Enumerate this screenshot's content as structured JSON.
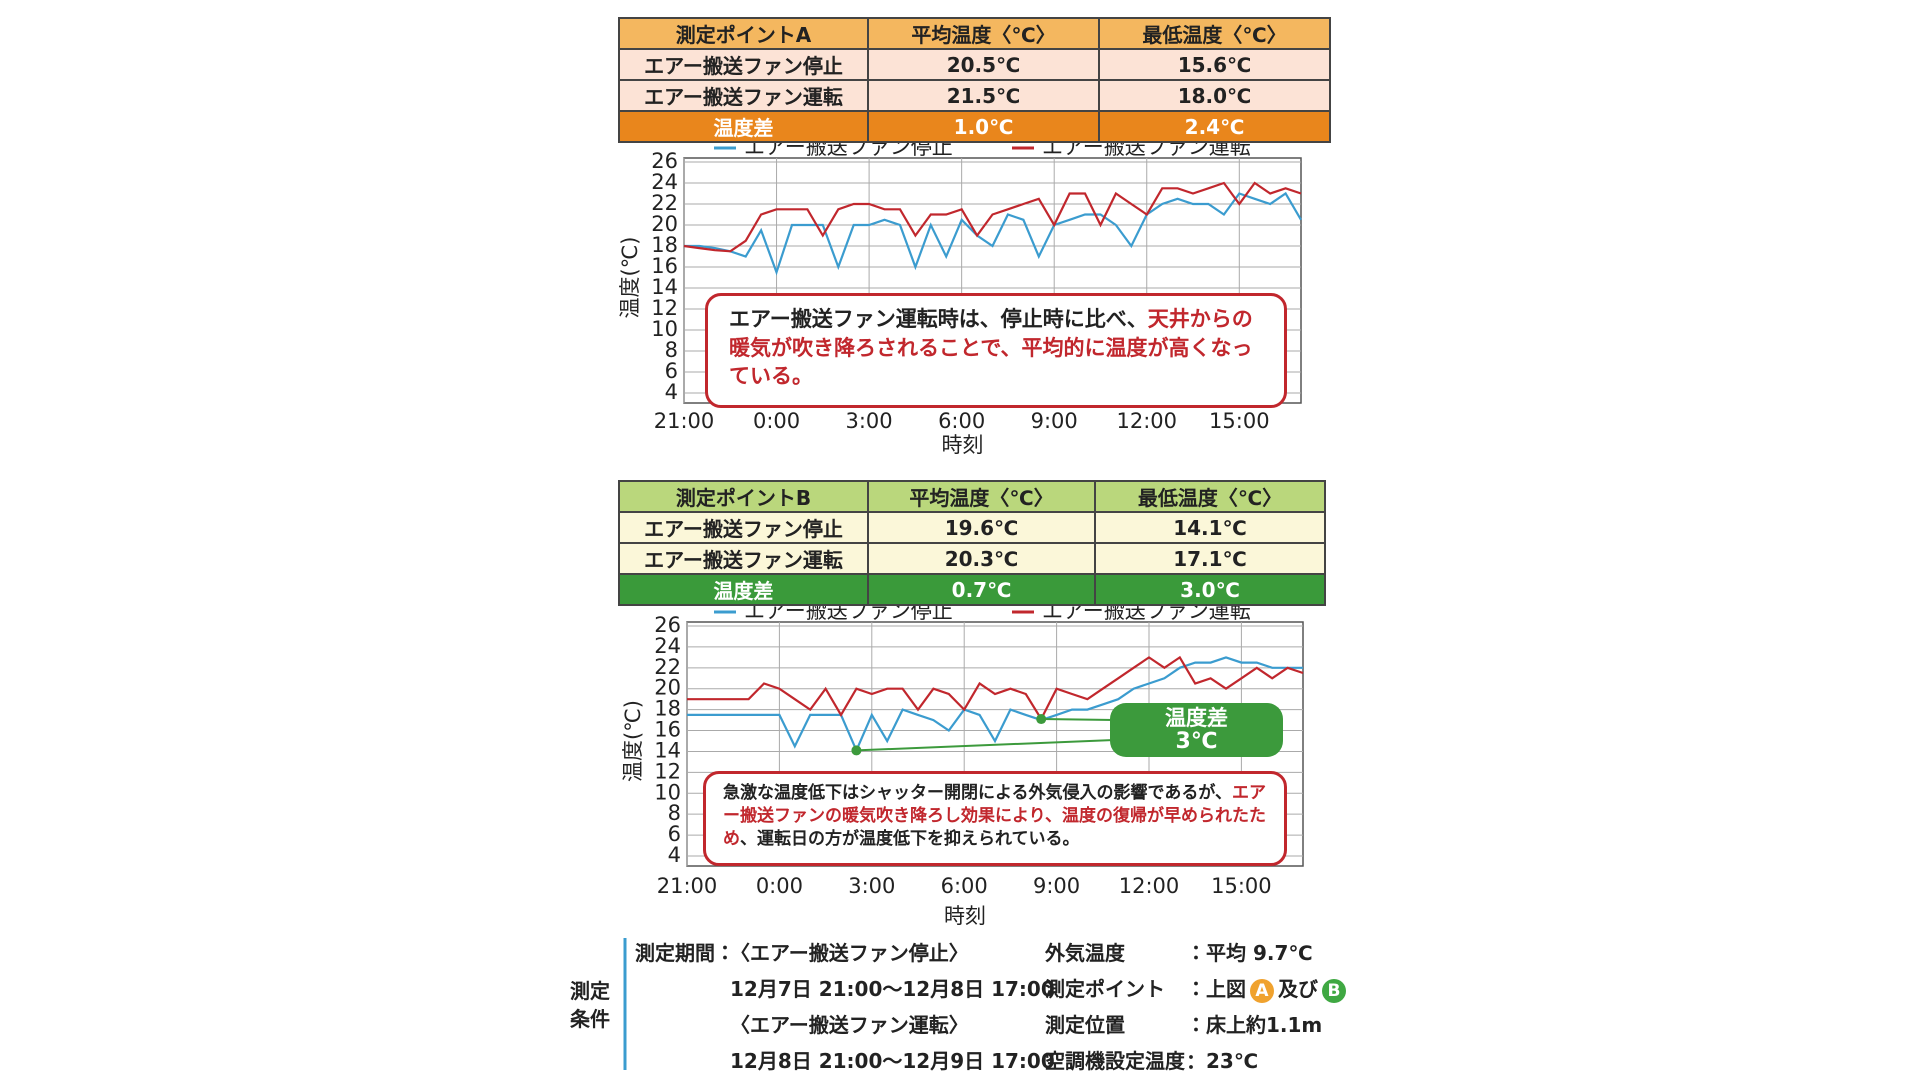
{
  "table_a": {
    "header": [
      "測定ポイントA",
      "平均温度〈℃〉",
      "最低温度〈℃〉"
    ],
    "rows": [
      [
        "エアー搬送ファン停止",
        "20.5℃",
        "15.6℃"
      ],
      [
        "エアー搬送ファン運転",
        "21.5℃",
        "18.0℃"
      ],
      [
        "温度差",
        "1.0℃",
        "2.4℃"
      ]
    ],
    "colors": {
      "header": "#f4b75f",
      "row": "#fce3d6",
      "diff": "#e9861c"
    }
  },
  "table_b": {
    "header": [
      "測定ポイントB",
      "平均温度〈℃〉",
      "最低温度〈℃〉"
    ],
    "rows": [
      [
        "エアー搬送ファン停止",
        "19.6℃",
        "14.1℃"
      ],
      [
        "エアー搬送ファン運転",
        "20.3℃",
        "17.1℃"
      ],
      [
        "温度差",
        "0.7℃",
        "3.0℃"
      ]
    ],
    "colors": {
      "header": "#bad77c",
      "row": "#fbf7d9",
      "diff": "#3a9a3a"
    }
  },
  "chart_data": [
    {
      "type": "line",
      "ylabel": "温度(℃)",
      "xlabel": "時刻",
      "xlim": [
        0,
        20
      ],
      "ylim": [
        4,
        26
      ],
      "yticks": [
        4,
        6,
        8,
        10,
        12,
        14,
        16,
        18,
        20,
        22,
        24,
        26
      ],
      "xticks": [
        {
          "value": 0,
          "label": "21:00"
        },
        {
          "value": 3,
          "label": "0:00"
        },
        {
          "value": 6,
          "label": "3:00"
        },
        {
          "value": 9,
          "label": "6:00"
        },
        {
          "value": 12,
          "label": "9:00"
        },
        {
          "value": 15,
          "label": "12:00"
        },
        {
          "value": 18,
          "label": "15:00"
        }
      ],
      "grid": true,
      "x": [
        0,
        0.5,
        1,
        1.5,
        2,
        2.5,
        3,
        3.5,
        4,
        4.5,
        5,
        5.5,
        6,
        6.5,
        7,
        7.5,
        8,
        8.5,
        9,
        9.5,
        10,
        10.5,
        11,
        11.5,
        12,
        12.5,
        13,
        13.5,
        14,
        14.5,
        15,
        15.5,
        16,
        16.5,
        17,
        17.5,
        18,
        18.5,
        19,
        19.5,
        20
      ],
      "series": [
        {
          "name": "エアー搬送ファン停止",
          "color": "#3b9ccf",
          "values": [
            18,
            18,
            17.8,
            17.5,
            17,
            19.5,
            15.5,
            20,
            20,
            20,
            16,
            20,
            20,
            20.5,
            20,
            16,
            20,
            17,
            20.5,
            19,
            18,
            21,
            20.5,
            17,
            20,
            20.5,
            21,
            21,
            20,
            18,
            21,
            22,
            22.5,
            22,
            22,
            21,
            23,
            22.5,
            22,
            23,
            20.5
          ]
        },
        {
          "name": "エアー搬送ファン運転",
          "color": "#c1272d",
          "values": [
            18,
            17.8,
            17.6,
            17.5,
            18.5,
            21,
            21.5,
            21.5,
            21.5,
            19,
            21.5,
            22,
            22,
            21.5,
            21.5,
            19,
            21,
            21,
            21.5,
            19,
            21,
            21.5,
            22,
            22.5,
            20,
            23,
            23,
            20,
            23,
            22,
            21,
            23.5,
            23.5,
            23,
            23.5,
            24,
            22,
            24,
            23,
            23.5,
            23
          ]
        }
      ],
      "annotation": [
        {
          "text": "エアー搬送ファン運転時は、停止時に比べ、",
          "highlight": false
        },
        {
          "text": "天井からの暖気が吹き降ろされることで、平均的に温度が高くなっている。",
          "highlight": true
        }
      ]
    },
    {
      "type": "line",
      "ylabel": "温度(℃)",
      "xlabel": "時刻",
      "xlim": [
        0,
        20
      ],
      "ylim": [
        4,
        26
      ],
      "yticks": [
        4,
        6,
        8,
        10,
        12,
        14,
        16,
        18,
        20,
        22,
        24,
        26
      ],
      "xticks": [
        {
          "value": 0,
          "label": "21:00"
        },
        {
          "value": 3,
          "label": "0:00"
        },
        {
          "value": 6,
          "label": "3:00"
        },
        {
          "value": 9,
          "label": "6:00"
        },
        {
          "value": 12,
          "label": "9:00"
        },
        {
          "value": 15,
          "label": "12:00"
        },
        {
          "value": 18,
          "label": "15:00"
        }
      ],
      "grid": true,
      "x": [
        0,
        0.5,
        1,
        1.5,
        2,
        2.5,
        3,
        3.5,
        4,
        4.5,
        5,
        5.5,
        6,
        6.5,
        7,
        7.5,
        8,
        8.5,
        9,
        9.5,
        10,
        10.5,
        11,
        11.5,
        12,
        12.5,
        13,
        13.5,
        14,
        14.5,
        15,
        15.5,
        16,
        16.5,
        17,
        17.5,
        18,
        18.5,
        19,
        19.5,
        20
      ],
      "series": [
        {
          "name": "エアー搬送ファン停止",
          "color": "#3b9ccf",
          "values": [
            17.5,
            17.5,
            17.5,
            17.5,
            17.5,
            17.5,
            17.5,
            14.5,
            17.5,
            17.5,
            17.5,
            14.1,
            17.5,
            15,
            18,
            17.5,
            17,
            16,
            18,
            17.5,
            15,
            18,
            17.5,
            17,
            17.5,
            18,
            18,
            18.5,
            19,
            20,
            20.5,
            21,
            22,
            22.5,
            22.5,
            23,
            22.5,
            22.5,
            22,
            22,
            22
          ]
        },
        {
          "name": "エアー搬送ファン運転",
          "color": "#c1272d",
          "values": [
            19,
            19,
            19,
            19,
            19,
            20.5,
            20,
            19,
            18,
            20,
            17.5,
            20,
            19.5,
            20,
            20,
            18,
            20,
            19.5,
            18,
            20.5,
            19.5,
            20,
            19.5,
            17.1,
            20,
            19.5,
            19,
            20,
            21,
            22,
            23,
            22,
            23,
            20.5,
            21,
            20,
            21,
            22,
            21,
            22,
            21.5
          ]
        }
      ],
      "callout": {
        "title": "温度差",
        "value": "3℃",
        "color": "#3c9a3c"
      },
      "annotation": [
        {
          "text": "急激な温度低下はシャッター開閉による外気侵入の影響であるが、",
          "highlight": false
        },
        {
          "text": "エアー搬送ファンの暖気吹き降ろし効果により、温度の復帰が早められたため",
          "highlight": true
        },
        {
          "text": "、運転日の方が温度低下を抑えられている。",
          "highlight": false
        }
      ]
    }
  ],
  "conditions": {
    "label": [
      "測定",
      "条件"
    ],
    "period_label": "測定期間：",
    "periods": [
      {
        "name": "〈エアー搬送ファン停止〉",
        "range": "12月7日 21:00〜12月8日 17:00"
      },
      {
        "name": "〈エアー搬送ファン運転〉",
        "range": "12月8日 21:00〜12月9日 17:00"
      }
    ],
    "items": [
      {
        "name": "外気温度",
        "value": "：平均 9.7℃"
      },
      {
        "name": "測定ポイント",
        "value": "：上図",
        "badges": [
          "A",
          "B"
        ],
        "joiner": "及び",
        "badge_colors": [
          "#f0a22e",
          "#3fa842"
        ]
      },
      {
        "name": "測定位置",
        "value": "：床上約1.1m"
      },
      {
        "name": "空調機設定温度",
        "value": "：23℃"
      }
    ]
  }
}
